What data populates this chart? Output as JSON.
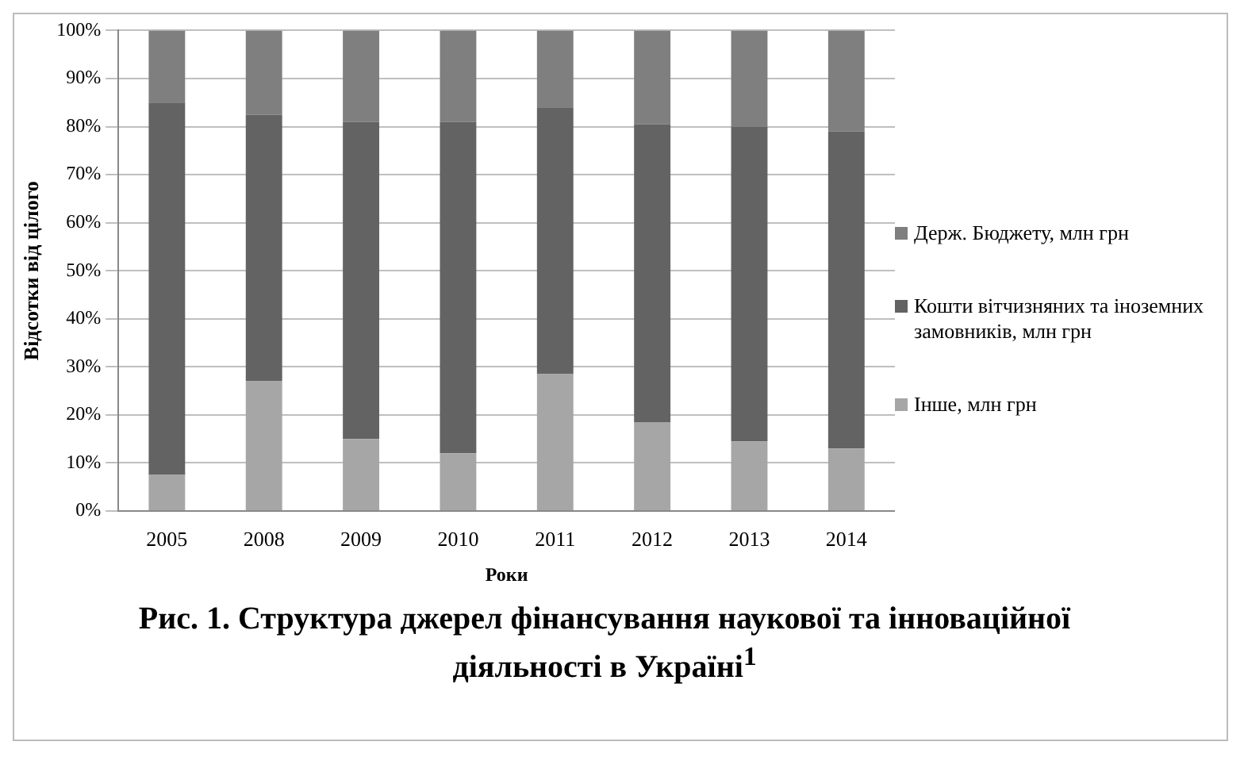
{
  "chart_data": {
    "type": "bar",
    "title": "Рис. 1. Структура джерел фінансування наукової та інноваційної діяльності в Україні$^{1}$",
    "xlabel": "Роки",
    "ylabel": "Відсотки від цілого",
    "categories": [
      "2005",
      "2008",
      "2009",
      "2010",
      "2011",
      "2012",
      "2013",
      "2014"
    ],
    "stacked": true,
    "series": [
      {
        "name": "Інше, млн грн",
        "color": "#a6a6a6",
        "values": [
          7.5,
          27,
          15,
          12,
          28.5,
          18.5,
          14.5,
          13
        ]
      },
      {
        "name": "Кошти вітчизняних та іноземних замовників, млн грн",
        "color": "#636363",
        "values": [
          77.5,
          55.5,
          66,
          69,
          55.5,
          62,
          65.5,
          66
        ]
      },
      {
        "name": "Держ. Бюджету, млн грн",
        "color": "#7f7f7f",
        "values": [
          15,
          17.5,
          19,
          19,
          16,
          19.5,
          20,
          21
        ]
      }
    ],
    "ylim": [
      0,
      100
    ],
    "yticks": [
      {
        "value": 0,
        "label": "0%"
      },
      {
        "value": 10,
        "label": "10%"
      },
      {
        "value": 20,
        "label": "20%"
      },
      {
        "value": 30,
        "label": "30%"
      },
      {
        "value": 40,
        "label": "40%"
      },
      {
        "value": 50,
        "label": "50%"
      },
      {
        "value": 60,
        "label": "60%"
      },
      {
        "value": 70,
        "label": "70%"
      },
      {
        "value": 80,
        "label": "80%"
      },
      {
        "value": 90,
        "label": "90%"
      },
      {
        "value": 100,
        "label": "100%"
      }
    ],
    "grid": "y",
    "legend": "right"
  }
}
